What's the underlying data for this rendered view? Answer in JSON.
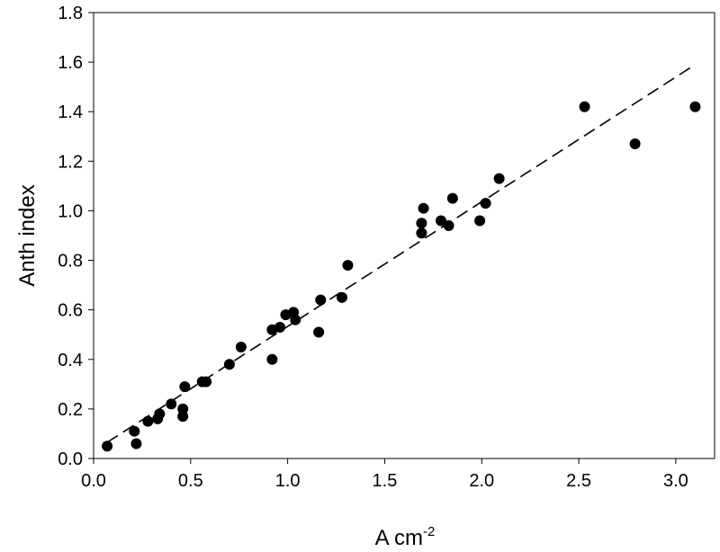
{
  "chart_data": {
    "type": "scatter",
    "title": "",
    "xlabel": "A cm",
    "xlabel_superscript": "-2",
    "ylabel": "Anth index",
    "xlim": [
      0.0,
      3.2
    ],
    "ylim": [
      0.0,
      1.8
    ],
    "xticks": [
      "0.0",
      "0.5",
      "1.0",
      "1.5",
      "2.0",
      "2.5",
      "3.0"
    ],
    "yticks": [
      "0.0",
      "0.2",
      "0.4",
      "0.6",
      "0.8",
      "1.0",
      "1.2",
      "1.4",
      "1.6",
      "1.8"
    ],
    "grid": false,
    "legend": "none",
    "marker_color": "#000000",
    "series": [
      {
        "points": [
          [
            0.07,
            0.05
          ],
          [
            0.21,
            0.11
          ],
          [
            0.22,
            0.06
          ],
          [
            0.28,
            0.15
          ],
          [
            0.33,
            0.16
          ],
          [
            0.34,
            0.18
          ],
          [
            0.4,
            0.22
          ],
          [
            0.46,
            0.2
          ],
          [
            0.46,
            0.17
          ],
          [
            0.47,
            0.29
          ],
          [
            0.56,
            0.31
          ],
          [
            0.58,
            0.31
          ],
          [
            0.7,
            0.38
          ],
          [
            0.76,
            0.45
          ],
          [
            0.92,
            0.4
          ],
          [
            0.92,
            0.52
          ],
          [
            0.96,
            0.53
          ],
          [
            0.99,
            0.58
          ],
          [
            1.03,
            0.59
          ],
          [
            1.04,
            0.56
          ],
          [
            1.16,
            0.51
          ],
          [
            1.17,
            0.64
          ],
          [
            1.28,
            0.65
          ],
          [
            1.31,
            0.78
          ],
          [
            1.69,
            0.91
          ],
          [
            1.69,
            0.95
          ],
          [
            1.7,
            1.01
          ],
          [
            1.79,
            0.96
          ],
          [
            1.83,
            0.94
          ],
          [
            1.85,
            1.05
          ],
          [
            1.99,
            0.96
          ],
          [
            2.02,
            1.03
          ],
          [
            2.09,
            1.13
          ],
          [
            2.53,
            1.42
          ],
          [
            2.79,
            1.27
          ],
          [
            3.1,
            1.42
          ]
        ]
      }
    ],
    "trendline": {
      "style": "dashed",
      "points": [
        [
          0.07,
          0.065
        ],
        [
          3.1,
          1.59
        ]
      ]
    }
  }
}
